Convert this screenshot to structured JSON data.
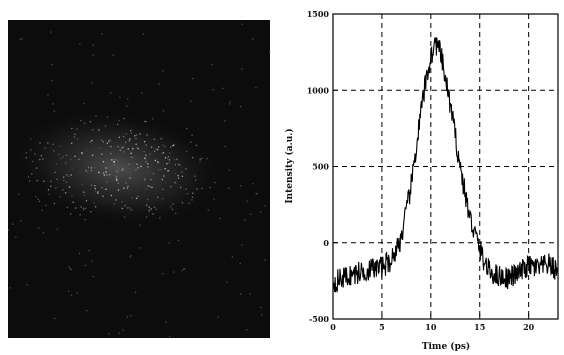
{
  "image_panel": {
    "description_type": "grayscale-camera-frame",
    "background_color": "#0c0c0c",
    "speckle_color": "#c8c8c8"
  },
  "chart_data": {
    "type": "line",
    "title": "",
    "xlabel": "Time (ps)",
    "ylabel": "Intensity (a.u.)",
    "xlim": [
      0,
      23
    ],
    "ylim": [
      -500,
      1500
    ],
    "xticks": [
      0,
      5,
      10,
      15,
      20
    ],
    "yticks": [
      -500,
      0,
      500,
      1000,
      1500
    ],
    "x_tick_labels": [
      "0",
      "5",
      "10",
      "15",
      "20"
    ],
    "y_tick_labels": [
      "-500",
      "0",
      "500",
      "1000",
      "1500"
    ],
    "grid": true,
    "grid_style": "dashed",
    "series": [
      {
        "color": "#000000",
        "x": [
          0,
          1,
          2,
          3,
          4,
          5,
          6,
          6.5,
          7,
          7.5,
          8,
          8.5,
          9,
          9.5,
          10,
          10.5,
          11,
          11.5,
          12,
          12.5,
          13,
          13.5,
          14,
          14.5,
          15,
          15.5,
          16,
          17,
          18,
          19,
          20,
          21,
          22,
          23
        ],
        "y": [
          -260,
          -230,
          -210,
          -190,
          -170,
          -160,
          -110,
          -40,
          40,
          200,
          380,
          620,
          860,
          1060,
          1220,
          1310,
          1240,
          1070,
          900,
          700,
          500,
          320,
          160,
          60,
          -40,
          -130,
          -190,
          -220,
          -230,
          -200,
          -150,
          -170,
          -140,
          -190
        ]
      }
    ]
  }
}
